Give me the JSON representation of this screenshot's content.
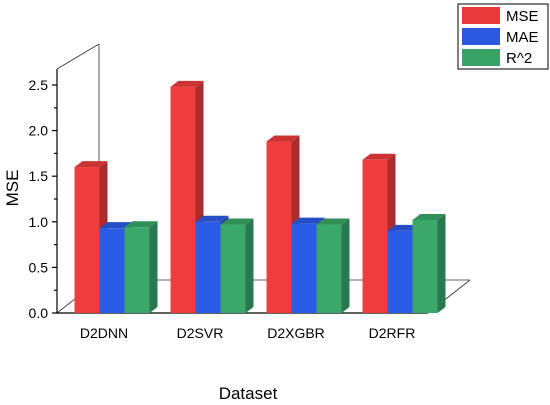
{
  "chart_data": {
    "type": "bar",
    "style": "3d-clustered",
    "categories": [
      "D2DNN",
      "D2SVR",
      "D2XGBR",
      "D2RFR"
    ],
    "series": [
      {
        "name": "MSE",
        "values": [
          1.6,
          2.48,
          1.88,
          1.68
        ],
        "color": "#ef3c3c"
      },
      {
        "name": "MAE",
        "values": [
          0.93,
          1.0,
          0.98,
          0.9
        ],
        "color": "#2b5ce6"
      },
      {
        "name": "R^2",
        "values": [
          0.94,
          0.97,
          0.97,
          1.02
        ],
        "color": "#3aa86a"
      }
    ],
    "xlabel": "Dataset",
    "ylabel": "MSE",
    "ylim": [
      0,
      2.75
    ],
    "yticks": [
      "0.0",
      "0.5",
      "1.0",
      "1.5",
      "2.0",
      "2.5"
    ],
    "grid": false,
    "legend_position": "top-right"
  }
}
